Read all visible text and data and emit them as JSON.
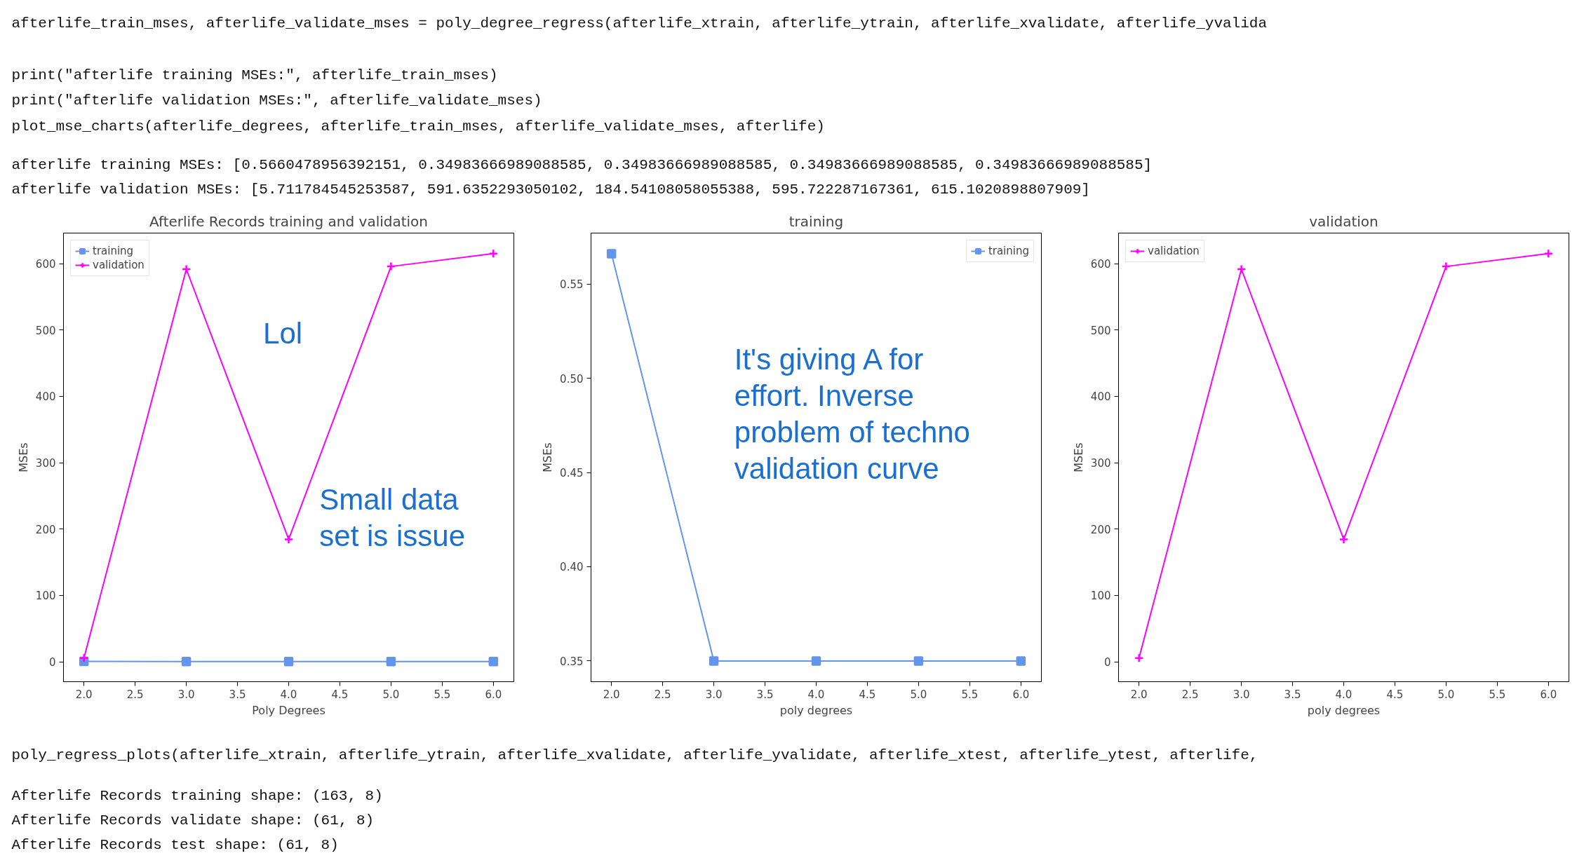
{
  "chart_data": [
    {
      "type": "other",
      "annotations": [
        "afterlife_train_mses, afterlife_validate_mses = poly_degree_regress(afterlife_xtrain, afterlife_ytrain, afterlife_xvalidate, afterlife_yvalida",
        "print(\"afterlife training MSEs:\", afterlife_train_mses)",
        "print(\"afterlife validation MSEs:\", afterlife_validate_mses)",
        "plot_mse_charts(afterlife_degrees, afterlife_train_mses, afterlife_validate_mses, afterlife)",
        "afterlife training MSEs: [0.5660478956392151, 0.34983666989088585, 0.34983666989088585, 0.34983666989088585, 0.34983666989088585]",
        "afterlife validation MSEs: [5.711784545253587, 591.6352293050102, 184.54108058055388, 595.722287167361, 615.1020898807909]"
      ]
    },
    {
      "type": "line",
      "title": "Afterlife Records training and validation",
      "xlabel": "Poly Degrees",
      "ylabel": "MSEs",
      "x": [
        2,
        3,
        4,
        5,
        6
      ],
      "xlim": [
        1.8,
        6.2
      ],
      "xticks": [
        {
          "value": 2,
          "label": "2.0"
        },
        {
          "value": 2.5,
          "label": "2.5"
        },
        {
          "value": 3,
          "label": "3.0"
        },
        {
          "value": 3.5,
          "label": "3.5"
        },
        {
          "value": 4,
          "label": "4.0"
        },
        {
          "value": 4.5,
          "label": "4.5"
        },
        {
          "value": 5,
          "label": "5.0"
        },
        {
          "value": 5.5,
          "label": "5.5"
        },
        {
          "value": 6,
          "label": "6.0"
        }
      ],
      "ylim": [
        -30,
        646
      ],
      "yticks": [
        0,
        100,
        200,
        300,
        400,
        500,
        600
      ],
      "legend": "top left",
      "series": [
        {
          "name": "training",
          "color": "#6495ed",
          "marker": "square",
          "values": [
            0.566,
            0.35,
            0.35,
            0.35,
            0.35
          ]
        },
        {
          "name": "validation",
          "color": "#ff00ff",
          "marker": "cross",
          "values": [
            5.7,
            591.6,
            184.5,
            595.7,
            615.1
          ]
        }
      ],
      "annotations": [
        "Lol",
        "Small data set is issue"
      ]
    },
    {
      "type": "line",
      "title": "training",
      "xlabel": "poly degrees",
      "ylabel": "MSEs",
      "x": [
        2,
        3,
        4,
        5,
        6
      ],
      "xlim": [
        1.8,
        6.2
      ],
      "xticks": [
        {
          "value": 2,
          "label": "2.0"
        },
        {
          "value": 2.5,
          "label": "2.5"
        },
        {
          "value": 3,
          "label": "3.0"
        },
        {
          "value": 3.5,
          "label": "3.5"
        },
        {
          "value": 4,
          "label": "4.0"
        },
        {
          "value": 4.5,
          "label": "4.5"
        },
        {
          "value": 5,
          "label": "5.0"
        },
        {
          "value": 5.5,
          "label": "5.5"
        },
        {
          "value": 6,
          "label": "6.0"
        }
      ],
      "ylim": [
        0.339,
        0.577
      ],
      "yticks": [
        0.35,
        {
          "value": 0.4,
          "label": "0.40"
        },
        0.45,
        {
          "value": 0.5,
          "label": "0.50"
        },
        0.55
      ],
      "legend": "top right",
      "series": [
        {
          "name": "training",
          "color": "#6495ed",
          "marker": "square",
          "values": [
            0.566,
            0.35,
            0.35,
            0.35,
            0.35
          ]
        }
      ],
      "annotations": [
        "It's giving A for effort. Inverse problem of techno validation curve"
      ]
    },
    {
      "type": "line",
      "title": "validation",
      "xlabel": "poly degrees",
      "ylabel": "MSEs",
      "x": [
        2,
        3,
        4,
        5,
        6
      ],
      "xlim": [
        1.8,
        6.2
      ],
      "xticks": [
        {
          "value": 2,
          "label": "2.0"
        },
        {
          "value": 2.5,
          "label": "2.5"
        },
        {
          "value": 3,
          "label": "3.0"
        },
        {
          "value": 3.5,
          "label": "3.5"
        },
        {
          "value": 4,
          "label": "4.0"
        },
        {
          "value": 4.5,
          "label": "4.5"
        },
        {
          "value": 5,
          "label": "5.0"
        },
        {
          "value": 5.5,
          "label": "5.5"
        },
        {
          "value": 6,
          "label": "6.0"
        }
      ],
      "ylim": [
        -30,
        646
      ],
      "yticks": [
        0,
        100,
        200,
        300,
        400,
        500,
        600
      ],
      "legend": "top left",
      "series": [
        {
          "name": "validation",
          "color": "#ff00ff",
          "marker": "cross",
          "values": [
            5.7,
            591.6,
            184.5,
            595.7,
            615.1
          ]
        }
      ]
    },
    {
      "type": "other",
      "annotations": [
        "poly_regress_plots(afterlife_xtrain, afterlife_ytrain, afterlife_xvalidate, afterlife_yvalidate, afterlife_xtest, afterlife_ytest, afterlife,",
        "Afterlife Records training shape: (163, 8)",
        "Afterlife Records validate shape: (61, 8)",
        "Afterlife Records test shape: (61, 8)"
      ]
    }
  ]
}
